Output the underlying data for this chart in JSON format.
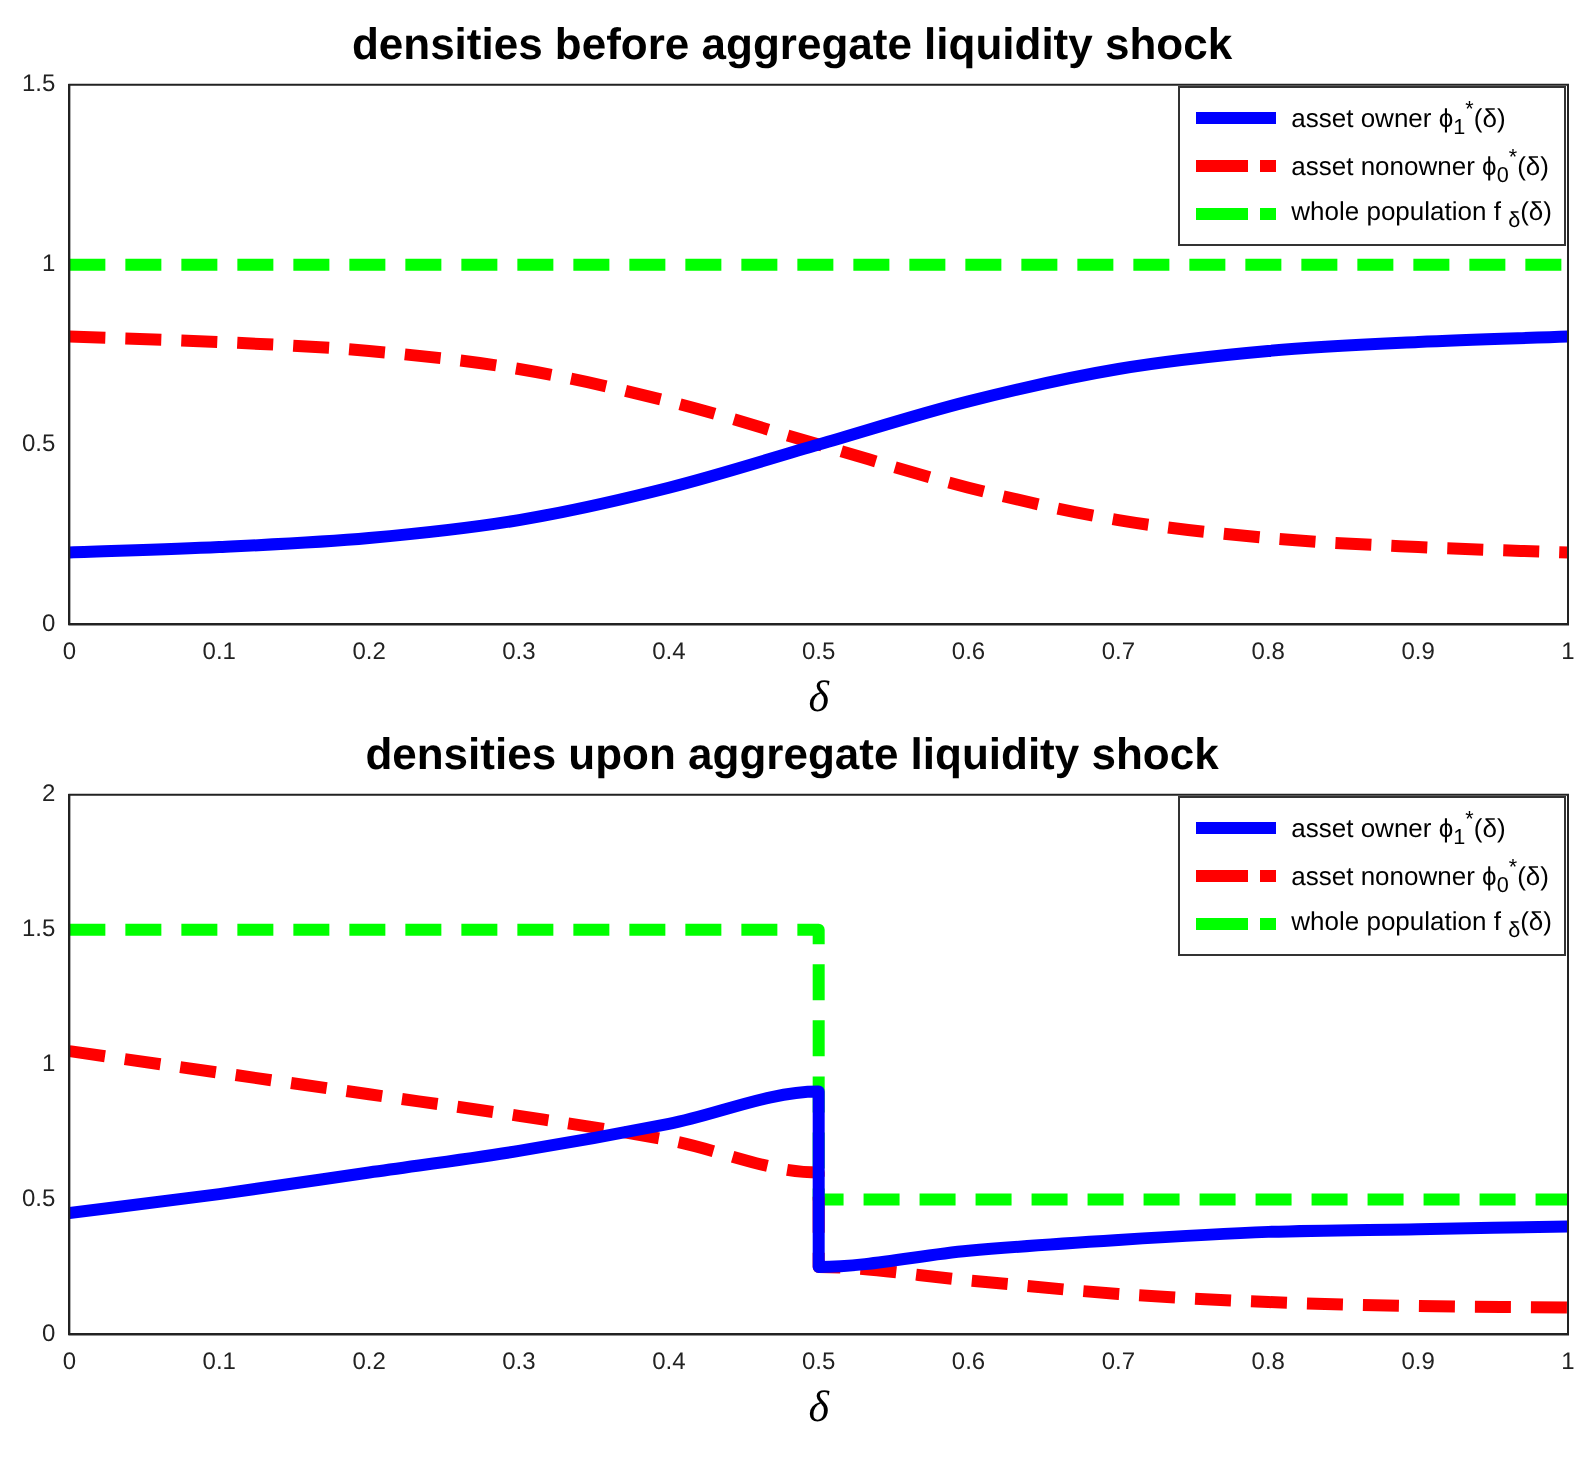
{
  "chart_data": [
    {
      "type": "line",
      "title": "densities before aggregate liquidity shock",
      "xlabel": "δ",
      "xlim": [
        0,
        1
      ],
      "xticks": [
        0,
        0.1,
        0.2,
        0.3,
        0.4,
        0.5,
        0.6,
        0.7,
        0.8,
        0.9,
        1
      ],
      "ylim": [
        0,
        1.5
      ],
      "yticks": [
        0,
        0.5,
        1,
        1.5
      ],
      "grid": false,
      "legend": "top right",
      "marker": "none",
      "series": [
        {
          "name": "asset owner ϕ$_{1}$$^{*}$(δ)",
          "color": "#0000ff",
          "line_style": "solid",
          "x": [
            0,
            0.1,
            0.2,
            0.3,
            0.4,
            0.5,
            0.6,
            0.7,
            0.8,
            0.9,
            1
          ],
          "values": [
            0.2,
            0.215,
            0.24,
            0.29,
            0.38,
            0.5,
            0.62,
            0.71,
            0.76,
            0.785,
            0.8
          ]
        },
        {
          "name": "asset nonowner ϕ$_{0}$$^{*}$(δ)",
          "color": "#ff0000",
          "line_style": "dashed",
          "x": [
            0,
            0.1,
            0.2,
            0.3,
            0.4,
            0.5,
            0.6,
            0.7,
            0.8,
            0.9,
            1
          ],
          "values": [
            0.8,
            0.785,
            0.76,
            0.71,
            0.62,
            0.5,
            0.38,
            0.29,
            0.24,
            0.215,
            0.2
          ]
        },
        {
          "name": "whole population f $_{δ}$(δ)",
          "color": "#00ff00",
          "line_style": "dashed",
          "x": [
            0,
            1
          ],
          "values": [
            1,
            1
          ]
        }
      ]
    },
    {
      "type": "line",
      "title": "densities upon aggregate liquidity shock",
      "xlabel": "δ",
      "xlim": [
        0,
        1
      ],
      "xticks": [
        0,
        0.1,
        0.2,
        0.3,
        0.4,
        0.5,
        0.6,
        0.7,
        0.8,
        0.9,
        1
      ],
      "ylim": [
        0,
        2
      ],
      "yticks": [
        0,
        0.5,
        1,
        1.5,
        2
      ],
      "grid": false,
      "legend": "top right",
      "marker": "none",
      "series": [
        {
          "name": "asset owner ϕ$_{1}$$^{*}$(δ)",
          "color": "#0000ff",
          "line_style": "solid",
          "x": [
            0,
            0.1,
            0.2,
            0.3,
            0.4,
            0.5,
            0.5,
            0.6,
            0.7,
            0.8,
            0.9,
            1
          ],
          "values": [
            0.45,
            0.52,
            0.6,
            0.68,
            0.78,
            0.9,
            0.25,
            0.31,
            0.35,
            0.38,
            0.39,
            0.4
          ]
        },
        {
          "name": "asset nonowner ϕ$_{0}$$^{*}$(δ)",
          "color": "#ff0000",
          "line_style": "dashed",
          "x": [
            0,
            0.1,
            0.2,
            0.3,
            0.4,
            0.5,
            0.5,
            0.6,
            0.7,
            0.8,
            0.9,
            1
          ],
          "values": [
            1.05,
            0.97,
            0.89,
            0.81,
            0.72,
            0.6,
            0.25,
            0.2,
            0.15,
            0.12,
            0.105,
            0.1
          ]
        },
        {
          "name": "whole population f $_{δ}$(δ)",
          "color": "#00ff00",
          "line_style": "dashed",
          "x": [
            0,
            0.5,
            0.5,
            1
          ],
          "values": [
            1.5,
            1.5,
            0.5,
            0.5
          ]
        }
      ]
    }
  ]
}
